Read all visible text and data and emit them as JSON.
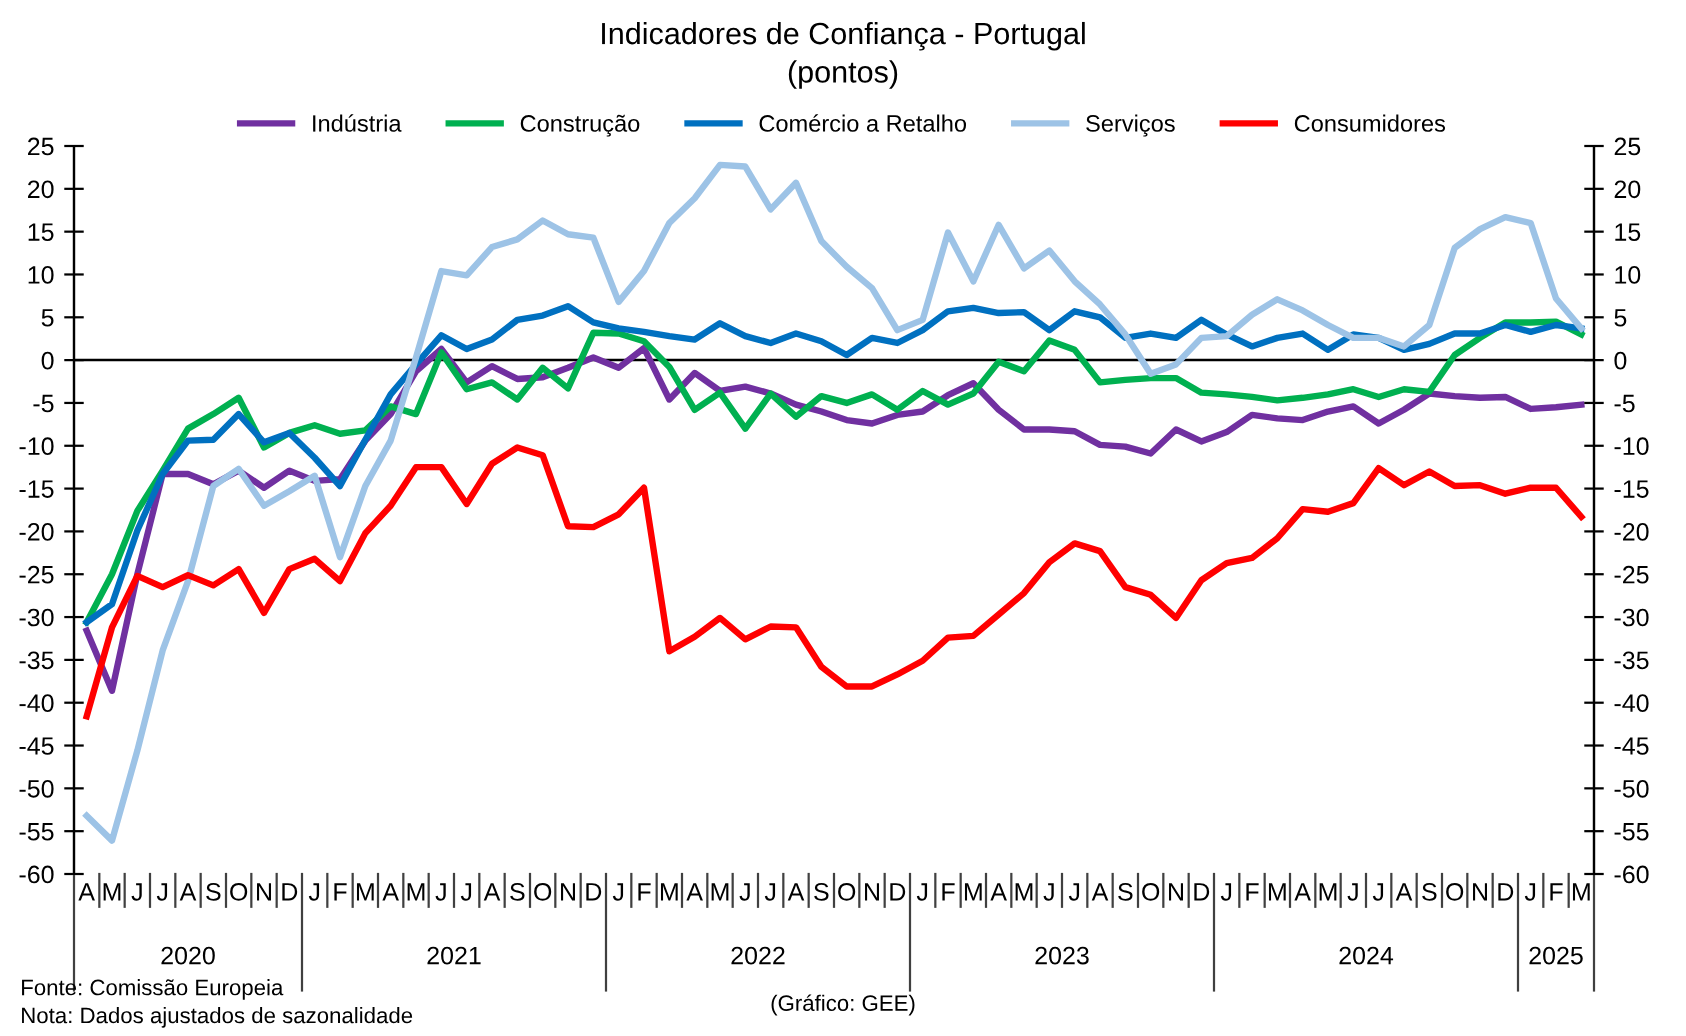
{
  "chart_data": {
    "type": "line",
    "title": "Indicadores de Confiança - Portugal",
    "subtitle": "(pontos)",
    "categories": [
      "A",
      "M",
      "J",
      "J",
      "A",
      "S",
      "O",
      "N",
      "D",
      "J",
      "F",
      "M",
      "A",
      "M",
      "J",
      "J",
      "A",
      "S",
      "O",
      "N",
      "D",
      "J",
      "F",
      "M",
      "A",
      "M",
      "J",
      "J",
      "A",
      "S",
      "O",
      "N",
      "D",
      "J",
      "F",
      "M",
      "A",
      "M",
      "J",
      "J",
      "A",
      "S",
      "O",
      "N",
      "D",
      "J",
      "F",
      "M",
      "A",
      "M",
      "J",
      "J",
      "A",
      "S",
      "O",
      "N",
      "D",
      "J",
      "F",
      "M"
    ],
    "series": [
      {
        "name": "Indústria",
        "color": "#7030a0",
        "values": [
          -31.6,
          -38.6,
          -25.0,
          -13.3,
          -13.3,
          -14.5,
          -12.9,
          -14.9,
          -12.9,
          -14.1,
          -13.9,
          -9.4,
          -6.3,
          -1.3,
          1.3,
          -2.6,
          -0.7,
          -2.2,
          -2.0,
          -0.9,
          0.3,
          -0.9,
          1.4,
          -4.6,
          -1.5,
          -3.6,
          -3.1,
          -3.9,
          -5.2,
          -6.0,
          -7.0,
          -7.4,
          -6.4,
          -6.0,
          -4.1,
          -2.7,
          -5.8,
          -8.1,
          -8.1,
          -8.3,
          -9.9,
          -10.1,
          -10.9,
          -8.1,
          -9.5,
          -8.4,
          -6.4,
          -6.8,
          -7.0,
          -6.0,
          -5.4,
          -7.4,
          -5.8,
          -3.9,
          -4.2,
          -4.4,
          -4.3,
          -5.7,
          -5.5,
          -5.2
        ]
      },
      {
        "name": "Construção",
        "color": "#00b050",
        "values": [
          -30.6,
          -25.0,
          -17.6,
          -12.9,
          -8.0,
          -6.3,
          -4.4,
          -10.2,
          -8.5,
          -7.6,
          -8.6,
          -8.2,
          -5.4,
          -6.3,
          0.9,
          -3.4,
          -2.6,
          -4.6,
          -0.9,
          -3.3,
          3.2,
          3.1,
          2.2,
          -0.8,
          -5.8,
          -3.8,
          -8.0,
          -3.9,
          -6.6,
          -4.2,
          -5.0,
          -4.0,
          -5.8,
          -3.6,
          -5.2,
          -3.9,
          -0.2,
          -1.3,
          2.3,
          1.2,
          -2.6,
          -2.3,
          -2.1,
          -2.1,
          -3.8,
          -4.0,
          -4.3,
          -4.7,
          -4.4,
          -4.0,
          -3.4,
          -4.3,
          -3.4,
          -3.7,
          0.6,
          2.6,
          4.4,
          4.4,
          4.5,
          3.0
        ]
      },
      {
        "name": "Comércio a Retalho",
        "color": "#0070c0",
        "values": [
          -30.6,
          -28.5,
          -19.9,
          -13.3,
          -9.4,
          -9.3,
          -6.3,
          -9.6,
          -8.5,
          -11.4,
          -14.7,
          -9.3,
          -4.0,
          -0.5,
          2.9,
          1.3,
          2.4,
          4.7,
          5.2,
          6.3,
          4.4,
          3.7,
          3.3,
          2.8,
          2.4,
          4.3,
          2.8,
          2.0,
          3.1,
          2.2,
          0.6,
          2.6,
          2.0,
          3.5,
          5.7,
          6.1,
          5.5,
          5.6,
          3.5,
          5.7,
          5.0,
          2.6,
          3.1,
          2.6,
          4.7,
          3.0,
          1.6,
          2.6,
          3.1,
          1.2,
          3.0,
          2.6,
          1.2,
          1.9,
          3.1,
          3.1,
          4.1,
          3.3,
          4.1,
          3.7
        ]
      },
      {
        "name": "Serviços",
        "color": "#9dc3e6",
        "values": [
          -53.2,
          -56.1,
          -45.6,
          -33.9,
          -25.8,
          -14.7,
          -12.7,
          -17.0,
          -15.3,
          -13.5,
          -23.0,
          -14.7,
          -9.4,
          0.3,
          10.4,
          9.9,
          13.2,
          14.1,
          16.3,
          14.7,
          14.3,
          6.8,
          10.4,
          16.0,
          18.9,
          22.8,
          22.6,
          17.6,
          20.7,
          13.9,
          10.9,
          8.4,
          3.5,
          4.7,
          14.9,
          9.2,
          15.8,
          10.7,
          12.8,
          9.2,
          6.5,
          3.0,
          -1.6,
          -0.5,
          2.6,
          2.8,
          5.3,
          7.1,
          5.8,
          4.1,
          2.6,
          2.6,
          1.6,
          4.1,
          13.1,
          15.3,
          16.7,
          16.0,
          7.2,
          3.7
        ]
      },
      {
        "name": "Consumidores",
        "color": "#ff0000",
        "values": [
          -41.6,
          -31.2,
          -25.2,
          -26.5,
          -25.1,
          -26.3,
          -24.4,
          -29.5,
          -24.4,
          -23.2,
          -25.8,
          -20.2,
          -17.0,
          -12.5,
          -12.5,
          -16.8,
          -12.1,
          -10.2,
          -11.1,
          -19.4,
          -19.5,
          -18.0,
          -14.9,
          -34.0,
          -32.3,
          -30.1,
          -32.6,
          -31.1,
          -31.2,
          -35.8,
          -38.1,
          -38.1,
          -36.7,
          -35.1,
          -32.4,
          -32.2,
          -29.7,
          -27.2,
          -23.6,
          -21.4,
          -22.3,
          -26.5,
          -27.4,
          -30.1,
          -25.7,
          -23.7,
          -23.1,
          -20.8,
          -17.4,
          -17.7,
          -16.7,
          -12.6,
          -14.6,
          -13.0,
          -14.7,
          -14.6,
          -15.6,
          -14.9,
          -14.9,
          -18.3
        ]
      }
    ],
    "ylim": [
      -60,
      25
    ],
    "yticks": [
      -60,
      -55,
      -50,
      -45,
      -40,
      -35,
      -30,
      -25,
      -20,
      -15,
      -10,
      -5,
      0,
      5,
      10,
      15,
      20,
      25
    ],
    "y2lim": [
      -60,
      25
    ],
    "y2ticks": [
      -60,
      -55,
      -50,
      -45,
      -40,
      -35,
      -30,
      -25,
      -20,
      -15,
      -10,
      -5,
      0,
      5,
      10,
      15,
      20,
      25
    ],
    "ref_lines": [
      {
        "axis": "y",
        "value": 0,
        "color": "#000000"
      }
    ],
    "annotations": [
      "2020",
      "2021",
      "2022",
      "2023",
      "2024",
      "2025",
      "Fonte: Comissão Europeia",
      "Nota: Dados ajustados de sazonalidade",
      "(Gráfico: GEE)"
    ],
    "legend": "top",
    "grid": false,
    "marker": "none",
    "line_style": "solid"
  }
}
